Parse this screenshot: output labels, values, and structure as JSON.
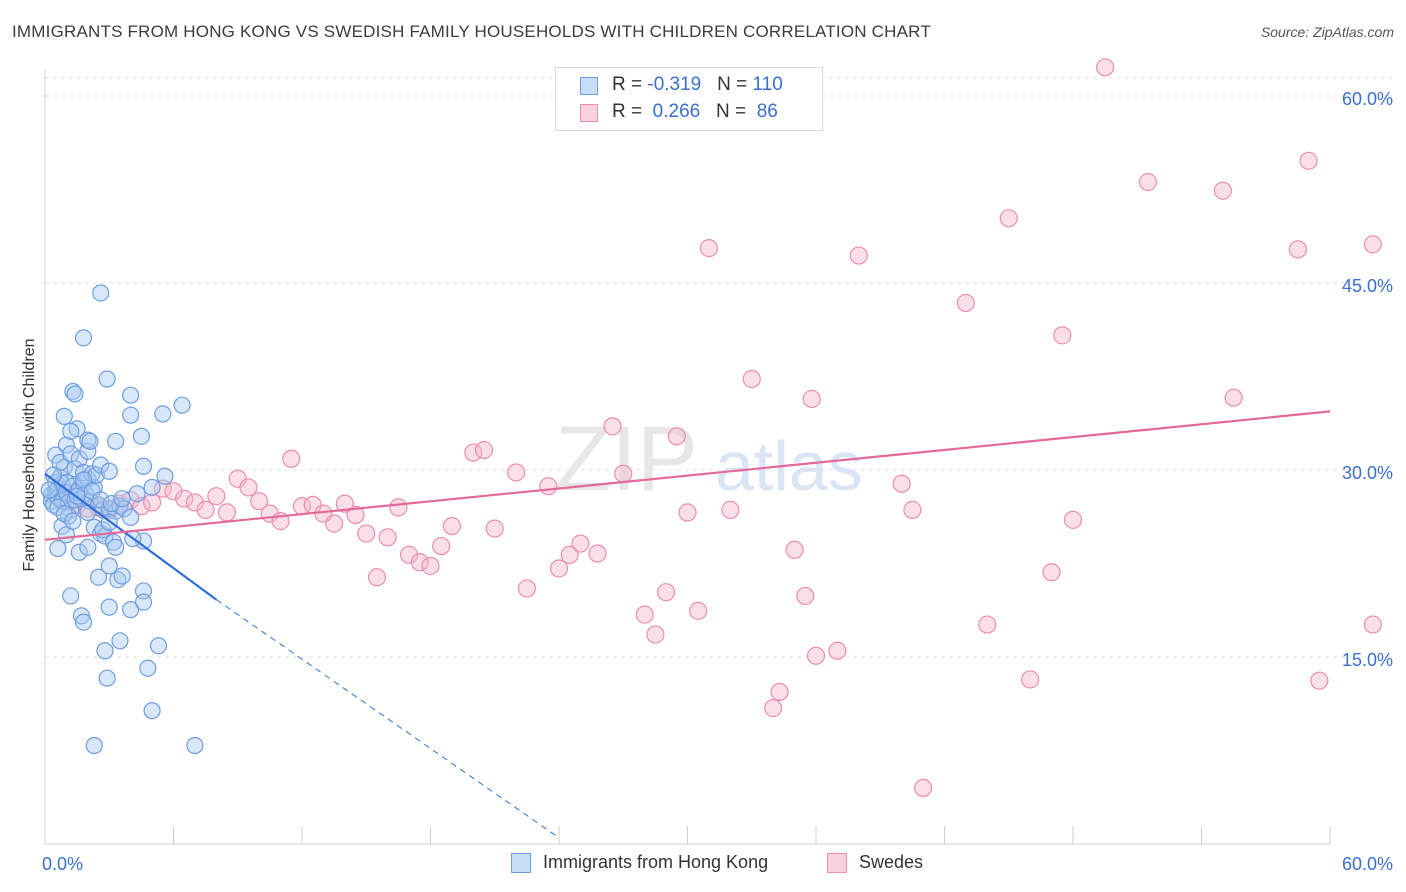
{
  "title": "IMMIGRANTS FROM HONG KONG VS SWEDISH FAMILY HOUSEHOLDS WITH CHILDREN CORRELATION CHART",
  "source": "Source: ZipAtlas.com",
  "watermark": {
    "zip": "ZIP",
    "atlas": "atlas"
  },
  "colors": {
    "blue_fill": "#a9c9f2",
    "blue_stroke": "#6f9de0",
    "blue_line": "#2f6fd6",
    "pink_fill": "#f5b8cb",
    "pink_stroke": "#ea8fab",
    "pink_line": "#e2699a",
    "tick_label": "#3a6fcf",
    "grid": "#e3e3e3"
  },
  "legend_top": [
    {
      "r_label": "R = ",
      "r_value": "-0.319",
      "n_label": "N = ",
      "n_value": "110"
    },
    {
      "r_label": "R = ",
      "r_value": " 0.266",
      "n_label": "N = ",
      "n_value": " 86"
    }
  ],
  "chart_data": {
    "type": "scatter",
    "ylabel": "Family Households with Children",
    "x_tick_labels": [
      "0.0%",
      "60.0%"
    ],
    "y_tick_labels": [
      "15.0%",
      "30.0%",
      "45.0%",
      "60.0%"
    ],
    "xlim": [
      0,
      60
    ],
    "ylim": [
      0,
      63
    ],
    "y_ticks": [
      15,
      30,
      45,
      60
    ],
    "grid": "horizontal dashed",
    "legend_position": "bottom",
    "series": [
      {
        "name": "Immigrants from Hong Kong",
        "r": -0.319,
        "n": 110,
        "trend": {
          "x0": 0,
          "y0": 29.7,
          "x1": 8,
          "y1": 19.6,
          "dashed_to_x": 24,
          "dashed_to_y": 0.5
        },
        "points": [
          [
            0.3,
            28
          ],
          [
            0.3,
            27.5
          ],
          [
            0.4,
            27.2
          ],
          [
            0.5,
            28.3
          ],
          [
            0.5,
            29
          ],
          [
            0.6,
            28.5
          ],
          [
            0.6,
            27.8
          ],
          [
            0.7,
            29.4
          ],
          [
            0.8,
            28.9
          ],
          [
            0.8,
            27.5
          ],
          [
            0.9,
            30.2
          ],
          [
            1.0,
            29
          ],
          [
            1.0,
            28.2
          ],
          [
            1.1,
            27.4
          ],
          [
            1.2,
            26.8
          ],
          [
            1.3,
            28.7
          ],
          [
            1.4,
            27.6
          ],
          [
            1.5,
            28.2
          ],
          [
            1.6,
            28.5
          ],
          [
            1.7,
            27.7
          ],
          [
            1.8,
            28.9
          ],
          [
            1.9,
            28.1
          ],
          [
            2.0,
            29.3
          ],
          [
            2.1,
            27.5
          ],
          [
            2.3,
            28.6
          ],
          [
            2.5,
            27.2
          ],
          [
            2.7,
            26.8
          ],
          [
            3.0,
            26.9
          ],
          [
            3.3,
            26.7
          ],
          [
            3.5,
            27.1
          ],
          [
            3.7,
            26.9
          ],
          [
            4.0,
            26.2
          ],
          [
            0.5,
            31.2
          ],
          [
            0.7,
            30.6
          ],
          [
            1.0,
            32
          ],
          [
            1.2,
            31.3
          ],
          [
            1.4,
            30.1
          ],
          [
            1.6,
            30.9
          ],
          [
            1.8,
            29.8
          ],
          [
            2.0,
            31.5
          ],
          [
            2.2,
            29.7
          ],
          [
            2.4,
            29.6
          ],
          [
            2.6,
            30.4
          ],
          [
            3.0,
            29.9
          ],
          [
            4.6,
            30.3
          ],
          [
            5.6,
            29.5
          ],
          [
            1.5,
            33.3
          ],
          [
            2.0,
            32.4
          ],
          [
            2.1,
            32.3
          ],
          [
            3.3,
            32.3
          ],
          [
            4.5,
            32.7
          ],
          [
            0.9,
            34.3
          ],
          [
            1.2,
            33.1
          ],
          [
            4.0,
            34.4
          ],
          [
            5.5,
            34.5
          ],
          [
            6.4,
            35.2
          ],
          [
            1.3,
            36.3
          ],
          [
            1.4,
            36.1
          ],
          [
            4.0,
            36
          ],
          [
            2.9,
            37.3
          ],
          [
            1.8,
            40.6
          ],
          [
            2.6,
            44.2
          ],
          [
            0.6,
            23.7
          ],
          [
            0.8,
            25.5
          ],
          [
            1.0,
            24.8
          ],
          [
            1.6,
            23.4
          ],
          [
            2.0,
            23.8
          ],
          [
            2.3,
            25.4
          ],
          [
            2.6,
            24.9
          ],
          [
            2.8,
            24.7
          ],
          [
            2.7,
            25.2
          ],
          [
            3.2,
            24.2
          ],
          [
            3.3,
            23.8
          ],
          [
            4.6,
            24.3
          ],
          [
            4.1,
            24.5
          ],
          [
            2.5,
            21.4
          ],
          [
            3.0,
            22.3
          ],
          [
            3.4,
            21.2
          ],
          [
            3.6,
            21.5
          ],
          [
            1.2,
            19.9
          ],
          [
            3.0,
            19
          ],
          [
            4.0,
            18.8
          ],
          [
            4.6,
            20.3
          ],
          [
            4.6,
            19.4
          ],
          [
            1.7,
            18.3
          ],
          [
            1.8,
            17.8
          ],
          [
            3.5,
            16.3
          ],
          [
            2.8,
            15.5
          ],
          [
            5.3,
            15.9
          ],
          [
            2.9,
            13.3
          ],
          [
            4.8,
            14.1
          ],
          [
            5.0,
            10.7
          ],
          [
            2.3,
            7.9
          ],
          [
            7.0,
            7.9
          ],
          [
            0.2,
            28.4
          ],
          [
            0.4,
            29.6
          ],
          [
            0.6,
            27.0
          ],
          [
            1.1,
            26.3
          ],
          [
            1.5,
            27.9
          ],
          [
            1.8,
            29.2
          ],
          [
            2.2,
            28.3
          ],
          [
            2.6,
            27.6
          ],
          [
            3.1,
            27.3
          ],
          [
            3.6,
            27.7
          ],
          [
            4.3,
            28.1
          ],
          [
            5.0,
            28.6
          ],
          [
            0.9,
            26.5
          ],
          [
            1.3,
            25.9
          ],
          [
            2.0,
            26.6
          ],
          [
            3.0,
            25.8
          ]
        ]
      },
      {
        "name": "Swedes",
        "r": 0.266,
        "n": 86,
        "trend": {
          "x0": 0,
          "y0": 24.4,
          "x1": 60,
          "y1": 34.7
        },
        "points": [
          [
            0.5,
            27.9
          ],
          [
            1.0,
            27.5
          ],
          [
            1.5,
            27.2
          ],
          [
            2.0,
            26.9
          ],
          [
            2.5,
            27
          ],
          [
            3.0,
            26.8
          ],
          [
            3.5,
            27.3
          ],
          [
            4.0,
            27.6
          ],
          [
            4.5,
            27.1
          ],
          [
            5.0,
            27.4
          ],
          [
            5.5,
            28.5
          ],
          [
            6.0,
            28.3
          ],
          [
            6.5,
            27.7
          ],
          [
            7.0,
            27.4
          ],
          [
            7.5,
            26.8
          ],
          [
            8.0,
            27.9
          ],
          [
            8.5,
            26.6
          ],
          [
            9.0,
            29.3
          ],
          [
            9.5,
            28.6
          ],
          [
            10.0,
            27.5
          ],
          [
            10.5,
            26.5
          ],
          [
            11.0,
            25.9
          ],
          [
            11.5,
            30.9
          ],
          [
            12.0,
            27.1
          ],
          [
            12.5,
            27.2
          ],
          [
            13.0,
            26.5
          ],
          [
            13.5,
            25.7
          ],
          [
            14.0,
            27.3
          ],
          [
            14.5,
            26.4
          ],
          [
            15.0,
            24.9
          ],
          [
            15.5,
            21.4
          ],
          [
            16.0,
            24.6
          ],
          [
            16.5,
            27
          ],
          [
            17.0,
            23.2
          ],
          [
            17.5,
            22.6
          ],
          [
            18.0,
            22.3
          ],
          [
            18.5,
            23.9
          ],
          [
            19.0,
            25.5
          ],
          [
            20.0,
            31.4
          ],
          [
            20.5,
            31.6
          ],
          [
            21.0,
            25.3
          ],
          [
            22.0,
            29.8
          ],
          [
            22.5,
            20.5
          ],
          [
            23.5,
            28.7
          ],
          [
            24.0,
            22.1
          ],
          [
            24.5,
            23.2
          ],
          [
            25.0,
            24.1
          ],
          [
            25.8,
            23.3
          ],
          [
            26.5,
            33.5
          ],
          [
            27.0,
            29.7
          ],
          [
            28.0,
            18.4
          ],
          [
            28.5,
            16.8
          ],
          [
            29.0,
            20.2
          ],
          [
            29.5,
            32.7
          ],
          [
            30.0,
            26.6
          ],
          [
            30.5,
            18.7
          ],
          [
            31.0,
            47.8
          ],
          [
            32.0,
            26.8
          ],
          [
            33.0,
            37.3
          ],
          [
            34.0,
            10.9
          ],
          [
            34.3,
            12.2
          ],
          [
            35.0,
            23.6
          ],
          [
            35.5,
            19.9
          ],
          [
            35.8,
            35.7
          ],
          [
            36.0,
            15.1
          ],
          [
            37.0,
            15.5
          ],
          [
            38.0,
            47.2
          ],
          [
            40.0,
            28.9
          ],
          [
            40.5,
            26.8
          ],
          [
            41.0,
            4.5
          ],
          [
            43.0,
            43.4
          ],
          [
            44.0,
            17.6
          ],
          [
            45.0,
            50.2
          ],
          [
            46.0,
            13.2
          ],
          [
            47.0,
            21.8
          ],
          [
            47.5,
            40.8
          ],
          [
            48.0,
            26
          ],
          [
            49.5,
            62.3
          ],
          [
            51.5,
            53.1
          ],
          [
            55.0,
            52.4
          ],
          [
            55.5,
            35.8
          ],
          [
            58.5,
            47.7
          ],
          [
            59.0,
            54.8
          ],
          [
            59.5,
            13.1
          ],
          [
            62.0,
            17.6
          ],
          [
            62.0,
            48.1
          ]
        ]
      }
    ]
  },
  "bottom_legend": [
    "Immigrants from Hong Kong",
    "Swedes"
  ]
}
